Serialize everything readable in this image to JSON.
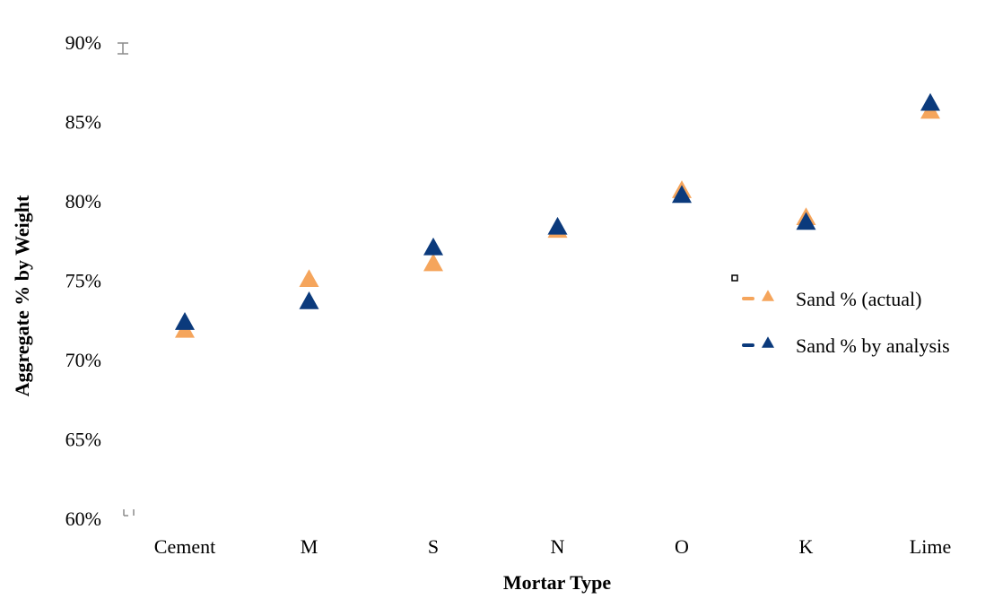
{
  "chart_data": {
    "type": "scatter",
    "title": "",
    "xlabel": "Mortar Type",
    "ylabel": "Aggregate % by Weight",
    "categories": [
      "Cement",
      "M",
      "S",
      "N",
      "O",
      "K",
      "Lime"
    ],
    "ylim": [
      60,
      90
    ],
    "yticks": [
      60,
      65,
      70,
      75,
      80,
      85,
      90
    ],
    "ytick_suffix": "%",
    "grid": false,
    "legend_position": "right",
    "marker": "triangle",
    "series": [
      {
        "name": "Sand % (actual)",
        "color": "#F5A55C",
        "values": [
          71.8,
          75.0,
          76.0,
          78.1,
          80.6,
          78.9,
          85.6
        ]
      },
      {
        "name": "Sand %  by analysis",
        "color": "#0B3A7C",
        "values": [
          72.3,
          73.6,
          77.0,
          78.3,
          80.3,
          78.6,
          86.1
        ]
      }
    ]
  }
}
